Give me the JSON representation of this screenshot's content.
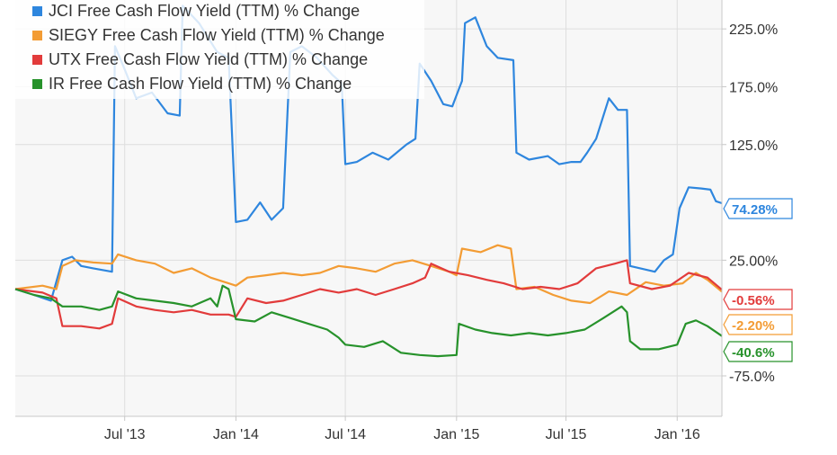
{
  "chart_data": {
    "type": "line",
    "title": "",
    "xlabel": "",
    "ylabel": "",
    "y_unit": "% Change",
    "x_range": [
      "2013-01-01",
      "2016-03-15"
    ],
    "ylim": [
      -110,
      250
    ],
    "yticks": [
      225,
      175,
      125,
      25,
      -75
    ],
    "ytick_labels": [
      "225.0%",
      "175.0%",
      "125.0%",
      "25.00%",
      "-75.0%"
    ],
    "xticks": [
      "2013-07-01",
      "2014-01-01",
      "2014-07-01",
      "2015-01-01",
      "2015-07-01",
      "2016-01-01"
    ],
    "xtick_labels": [
      "Jul '13",
      "Jan '14",
      "Jul '14",
      "Jan '15",
      "Jul '15",
      "Jan '16"
    ],
    "grid": true,
    "legend_position": "top-left",
    "series": [
      {
        "name": "JCI Free Cash Flow Yield (TTM) % Change",
        "color": "#2e86de",
        "end_label": "74.28%",
        "points": [
          [
            "2013-01-01",
            0
          ],
          [
            "2013-02-01",
            -5
          ],
          [
            "2013-03-01",
            -10
          ],
          [
            "2013-03-20",
            25
          ],
          [
            "2013-04-05",
            28
          ],
          [
            "2013-04-20",
            20
          ],
          [
            "2013-05-10",
            18
          ],
          [
            "2013-06-10",
            15
          ],
          [
            "2013-06-15",
            210
          ],
          [
            "2013-07-01",
            190
          ],
          [
            "2013-07-20",
            165
          ],
          [
            "2013-08-15",
            170
          ],
          [
            "2013-09-10",
            152
          ],
          [
            "2013-09-30",
            150
          ],
          [
            "2013-10-05",
            245
          ],
          [
            "2013-11-01",
            230
          ],
          [
            "2013-12-01",
            205
          ],
          [
            "2013-12-20",
            200
          ],
          [
            "2014-01-01",
            58
          ],
          [
            "2014-01-20",
            60
          ],
          [
            "2014-02-10",
            75
          ],
          [
            "2014-03-01",
            60
          ],
          [
            "2014-03-20",
            70
          ],
          [
            "2014-04-01",
            205
          ],
          [
            "2014-04-20",
            210
          ],
          [
            "2014-05-15",
            200
          ],
          [
            "2014-06-10",
            185
          ],
          [
            "2014-06-25",
            178
          ],
          [
            "2014-07-01",
            108
          ],
          [
            "2014-07-20",
            110
          ],
          [
            "2014-08-15",
            118
          ],
          [
            "2014-09-10",
            112
          ],
          [
            "2014-10-10",
            125
          ],
          [
            "2014-10-25",
            130
          ],
          [
            "2014-11-01",
            195
          ],
          [
            "2014-11-20",
            180
          ],
          [
            "2014-12-10",
            160
          ],
          [
            "2014-12-25",
            158
          ],
          [
            "2015-01-10",
            180
          ],
          [
            "2015-01-15",
            230
          ],
          [
            "2015-02-01",
            235
          ],
          [
            "2015-02-20",
            210
          ],
          [
            "2015-03-10",
            200
          ],
          [
            "2015-04-05",
            198
          ],
          [
            "2015-04-10",
            118
          ],
          [
            "2015-05-01",
            112
          ],
          [
            "2015-06-01",
            115
          ],
          [
            "2015-06-20",
            108
          ],
          [
            "2015-07-10",
            110
          ],
          [
            "2015-07-25",
            110
          ],
          [
            "2015-08-05",
            118
          ],
          [
            "2015-08-20",
            130
          ],
          [
            "2015-09-10",
            165
          ],
          [
            "2015-09-25",
            155
          ],
          [
            "2015-10-10",
            155
          ],
          [
            "2015-10-15",
            20
          ],
          [
            "2015-11-01",
            18
          ],
          [
            "2015-11-25",
            15
          ],
          [
            "2015-12-10",
            25
          ],
          [
            "2015-12-25",
            30
          ],
          [
            "2016-01-05",
            70
          ],
          [
            "2016-01-20",
            88
          ],
          [
            "2016-02-10",
            87
          ],
          [
            "2016-02-25",
            86
          ],
          [
            "2016-03-05",
            76
          ],
          [
            "2016-03-15",
            74.28
          ]
        ]
      },
      {
        "name": "SIEGY Free Cash Flow Yield (TTM) % Change",
        "color": "#f39c34",
        "end_label": "-2.20%",
        "points": [
          [
            "2013-01-01",
            0
          ],
          [
            "2013-02-15",
            3
          ],
          [
            "2013-03-10",
            0
          ],
          [
            "2013-03-20",
            20
          ],
          [
            "2013-04-10",
            25
          ],
          [
            "2013-05-10",
            23
          ],
          [
            "2013-06-10",
            22
          ],
          [
            "2013-06-20",
            30
          ],
          [
            "2013-07-20",
            25
          ],
          [
            "2013-08-20",
            22
          ],
          [
            "2013-09-20",
            14
          ],
          [
            "2013-10-20",
            18
          ],
          [
            "2013-11-20",
            10
          ],
          [
            "2013-12-20",
            5
          ],
          [
            "2014-01-01",
            3
          ],
          [
            "2014-01-20",
            10
          ],
          [
            "2014-02-20",
            12
          ],
          [
            "2014-03-20",
            14
          ],
          [
            "2014-04-20",
            12
          ],
          [
            "2014-05-20",
            14
          ],
          [
            "2014-06-20",
            20
          ],
          [
            "2014-07-20",
            18
          ],
          [
            "2014-08-20",
            15
          ],
          [
            "2014-09-20",
            22
          ],
          [
            "2014-10-20",
            25
          ],
          [
            "2014-11-20",
            20
          ],
          [
            "2014-12-20",
            15
          ],
          [
            "2015-01-01",
            12
          ],
          [
            "2015-01-10",
            35
          ],
          [
            "2015-02-10",
            32
          ],
          [
            "2015-03-10",
            38
          ],
          [
            "2015-04-01",
            35
          ],
          [
            "2015-04-10",
            0
          ],
          [
            "2015-05-10",
            2
          ],
          [
            "2015-06-10",
            -5
          ],
          [
            "2015-07-10",
            -10
          ],
          [
            "2015-08-10",
            -12
          ],
          [
            "2015-09-10",
            -2
          ],
          [
            "2015-10-10",
            -5
          ],
          [
            "2015-11-10",
            6
          ],
          [
            "2015-12-10",
            3
          ],
          [
            "2016-01-10",
            5
          ],
          [
            "2016-02-01",
            14
          ],
          [
            "2016-02-20",
            8
          ],
          [
            "2016-03-15",
            -2.2
          ]
        ]
      },
      {
        "name": "UTX Free Cash Flow Yield (TTM) % Change",
        "color": "#e23b3b",
        "end_label": "-0.56%",
        "points": [
          [
            "2013-01-01",
            0
          ],
          [
            "2013-02-15",
            -3
          ],
          [
            "2013-03-10",
            -8
          ],
          [
            "2013-03-20",
            -32
          ],
          [
            "2013-04-20",
            -32
          ],
          [
            "2013-05-20",
            -34
          ],
          [
            "2013-06-10",
            -30
          ],
          [
            "2013-06-20",
            -8
          ],
          [
            "2013-07-20",
            -15
          ],
          [
            "2013-08-20",
            -18
          ],
          [
            "2013-09-20",
            -20
          ],
          [
            "2013-10-20",
            -18
          ],
          [
            "2013-11-20",
            -22
          ],
          [
            "2013-12-20",
            -22
          ],
          [
            "2014-01-01",
            -24
          ],
          [
            "2014-01-20",
            -8
          ],
          [
            "2014-02-20",
            -12
          ],
          [
            "2014-03-20",
            -10
          ],
          [
            "2014-04-20",
            -5
          ],
          [
            "2014-05-20",
            0
          ],
          [
            "2014-06-20",
            -3
          ],
          [
            "2014-07-20",
            0
          ],
          [
            "2014-08-20",
            -5
          ],
          [
            "2014-09-20",
            0
          ],
          [
            "2014-10-20",
            5
          ],
          [
            "2014-11-10",
            10
          ],
          [
            "2014-11-20",
            22
          ],
          [
            "2014-12-20",
            15
          ],
          [
            "2015-01-20",
            12
          ],
          [
            "2015-02-20",
            8
          ],
          [
            "2015-03-20",
            5
          ],
          [
            "2015-04-20",
            0
          ],
          [
            "2015-05-20",
            2
          ],
          [
            "2015-06-20",
            0
          ],
          [
            "2015-07-20",
            5
          ],
          [
            "2015-08-20",
            18
          ],
          [
            "2015-09-20",
            22
          ],
          [
            "2015-10-10",
            25
          ],
          [
            "2015-10-15",
            5
          ],
          [
            "2015-11-20",
            0
          ],
          [
            "2015-12-20",
            3
          ],
          [
            "2016-01-20",
            14
          ],
          [
            "2016-02-20",
            10
          ],
          [
            "2016-03-15",
            -0.56
          ]
        ]
      },
      {
        "name": "IR Free Cash Flow Yield (TTM) % Change",
        "color": "#27922b",
        "end_label": "-40.6%",
        "points": [
          [
            "2013-01-01",
            0
          ],
          [
            "2013-02-01",
            -5
          ],
          [
            "2013-03-01",
            -8
          ],
          [
            "2013-03-20",
            -15
          ],
          [
            "2013-04-20",
            -15
          ],
          [
            "2013-05-20",
            -18
          ],
          [
            "2013-06-10",
            -15
          ],
          [
            "2013-06-20",
            -2
          ],
          [
            "2013-07-20",
            -8
          ],
          [
            "2013-08-20",
            -10
          ],
          [
            "2013-09-20",
            -12
          ],
          [
            "2013-10-20",
            -15
          ],
          [
            "2013-11-20",
            -8
          ],
          [
            "2013-12-01",
            -15
          ],
          [
            "2013-12-10",
            3
          ],
          [
            "2013-12-20",
            0
          ],
          [
            "2014-01-01",
            -26
          ],
          [
            "2014-02-01",
            -28
          ],
          [
            "2014-03-01",
            -20
          ],
          [
            "2014-04-01",
            -25
          ],
          [
            "2014-05-01",
            -30
          ],
          [
            "2014-06-01",
            -35
          ],
          [
            "2014-06-20",
            -42
          ],
          [
            "2014-07-01",
            -48
          ],
          [
            "2014-08-01",
            -50
          ],
          [
            "2014-09-01",
            -45
          ],
          [
            "2014-10-01",
            -55
          ],
          [
            "2014-11-01",
            -57
          ],
          [
            "2014-12-01",
            -58
          ],
          [
            "2015-01-01",
            -57
          ],
          [
            "2015-01-05",
            -30
          ],
          [
            "2015-02-01",
            -35
          ],
          [
            "2015-03-01",
            -38
          ],
          [
            "2015-04-01",
            -40
          ],
          [
            "2015-05-01",
            -38
          ],
          [
            "2015-06-01",
            -40
          ],
          [
            "2015-07-01",
            -38
          ],
          [
            "2015-08-01",
            -35
          ],
          [
            "2015-09-01",
            -25
          ],
          [
            "2015-10-01",
            -15
          ],
          [
            "2015-10-10",
            -20
          ],
          [
            "2015-10-15",
            -45
          ],
          [
            "2015-11-01",
            -52
          ],
          [
            "2015-12-01",
            -52
          ],
          [
            "2016-01-01",
            -48
          ],
          [
            "2016-01-15",
            -30
          ],
          [
            "2016-02-01",
            -27
          ],
          [
            "2016-02-20",
            -32
          ],
          [
            "2016-03-15",
            -40.6
          ]
        ]
      }
    ]
  }
}
